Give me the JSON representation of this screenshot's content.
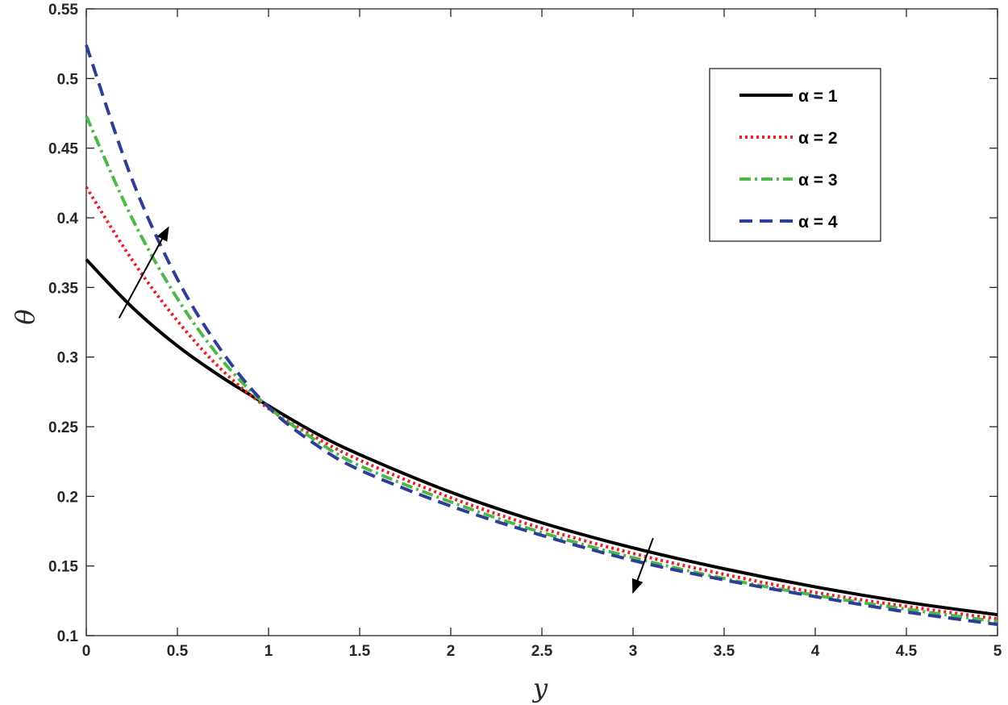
{
  "chart_data": {
    "type": "line",
    "title": "",
    "xlabel": "y",
    "ylabel": "θ",
    "xlim": [
      0,
      5
    ],
    "ylim": [
      0.1,
      0.55
    ],
    "xticks": [
      0,
      0.5,
      1,
      1.5,
      2,
      2.5,
      3,
      3.5,
      4,
      4.5,
      5
    ],
    "xtick_labels": [
      "0",
      "0.5",
      "1",
      "1.5",
      "2",
      "2.5",
      "3",
      "3.5",
      "4",
      "4.5",
      "5"
    ],
    "yticks": [
      0.1,
      0.15,
      0.2,
      0.25,
      0.3,
      0.35,
      0.4,
      0.45,
      0.5,
      0.55
    ],
    "ytick_labels": [
      "0.1",
      "0.15",
      "0.2",
      "0.25",
      "0.3",
      "0.35",
      "0.4",
      "0.45",
      "0.5",
      "0.55"
    ],
    "grid": false,
    "legend_position": "top-right",
    "x": [
      0,
      0.25,
      0.5,
      0.75,
      1,
      1.25,
      1.5,
      2,
      2.5,
      3,
      3.5,
      4,
      4.5,
      5
    ],
    "series": [
      {
        "name": "α = 1",
        "color": "#000000",
        "style": "solid",
        "values": [
          0.37,
          0.336,
          0.308,
          0.285,
          0.265,
          0.246,
          0.23,
          0.203,
          0.181,
          0.163,
          0.148,
          0.135,
          0.124,
          0.115
        ]
      },
      {
        "name": "α = 2",
        "color": "#e8202a",
        "style": "dotted",
        "values": [
          0.422,
          0.37,
          0.326,
          0.29,
          0.263,
          0.243,
          0.226,
          0.199,
          0.177,
          0.159,
          0.144,
          0.131,
          0.121,
          0.112
        ]
      },
      {
        "name": "α = 3",
        "color": "#4db848",
        "style": "dashdot",
        "values": [
          0.473,
          0.4,
          0.342,
          0.297,
          0.264,
          0.241,
          0.222,
          0.196,
          0.174,
          0.156,
          0.141,
          0.129,
          0.119,
          0.11
        ]
      },
      {
        "name": "α = 4",
        "color": "#2e3d97",
        "style": "dashed",
        "values": [
          0.524,
          0.428,
          0.356,
          0.303,
          0.264,
          0.238,
          0.219,
          0.193,
          0.172,
          0.154,
          0.14,
          0.128,
          0.117,
          0.108
        ]
      }
    ],
    "annotations": [
      {
        "type": "arrow",
        "meaning": "increasing α",
        "from": [
          0.18,
          0.328
        ],
        "to": [
          0.45,
          0.393
        ]
      },
      {
        "type": "arrow",
        "meaning": "increasing α",
        "from": [
          3.11,
          0.17
        ],
        "to": [
          3.0,
          0.131
        ]
      }
    ]
  }
}
